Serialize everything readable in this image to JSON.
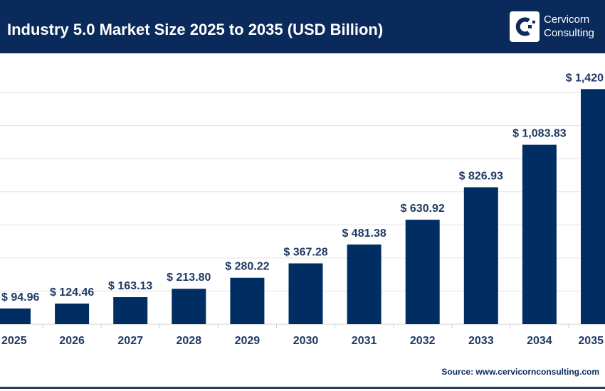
{
  "header": {
    "title": "Industry 5.0 Market Size 2025 to 2035 (USD Billion)",
    "logo_text_line1": "Cervicorn",
    "logo_text_line2": "Consulting"
  },
  "source": "Source: www.cervicornconsulting.com",
  "colors": {
    "header": "#0b2a5c",
    "bar": "#002d62",
    "label": "#1f3864",
    "grid": "#e3e3e3"
  },
  "chart_data": {
    "type": "bar",
    "title": "Industry 5.0 Market Size 2025 to 2035 (USD Billion)",
    "categories": [
      "2025",
      "2026",
      "2027",
      "2028",
      "2029",
      "2030",
      "2031",
      "2032",
      "2033",
      "2034",
      "2035"
    ],
    "values": [
      94.96,
      124.46,
      163.13,
      213.8,
      280.22,
      367.28,
      481.38,
      630.92,
      826.93,
      1083.83,
      1420
    ],
    "data_labels": [
      "$ 94.96",
      "$ 124.46",
      "$ 163.13",
      "$ 213.80",
      "$ 280.22",
      "$ 367.28",
      "$ 481.38",
      "$ 630.92",
      "$ 826.93",
      "$ 1,083.83",
      "$ 1,420"
    ],
    "ylim": [
      0,
      1400
    ],
    "grid": true,
    "xlabel": "",
    "ylabel": ""
  }
}
